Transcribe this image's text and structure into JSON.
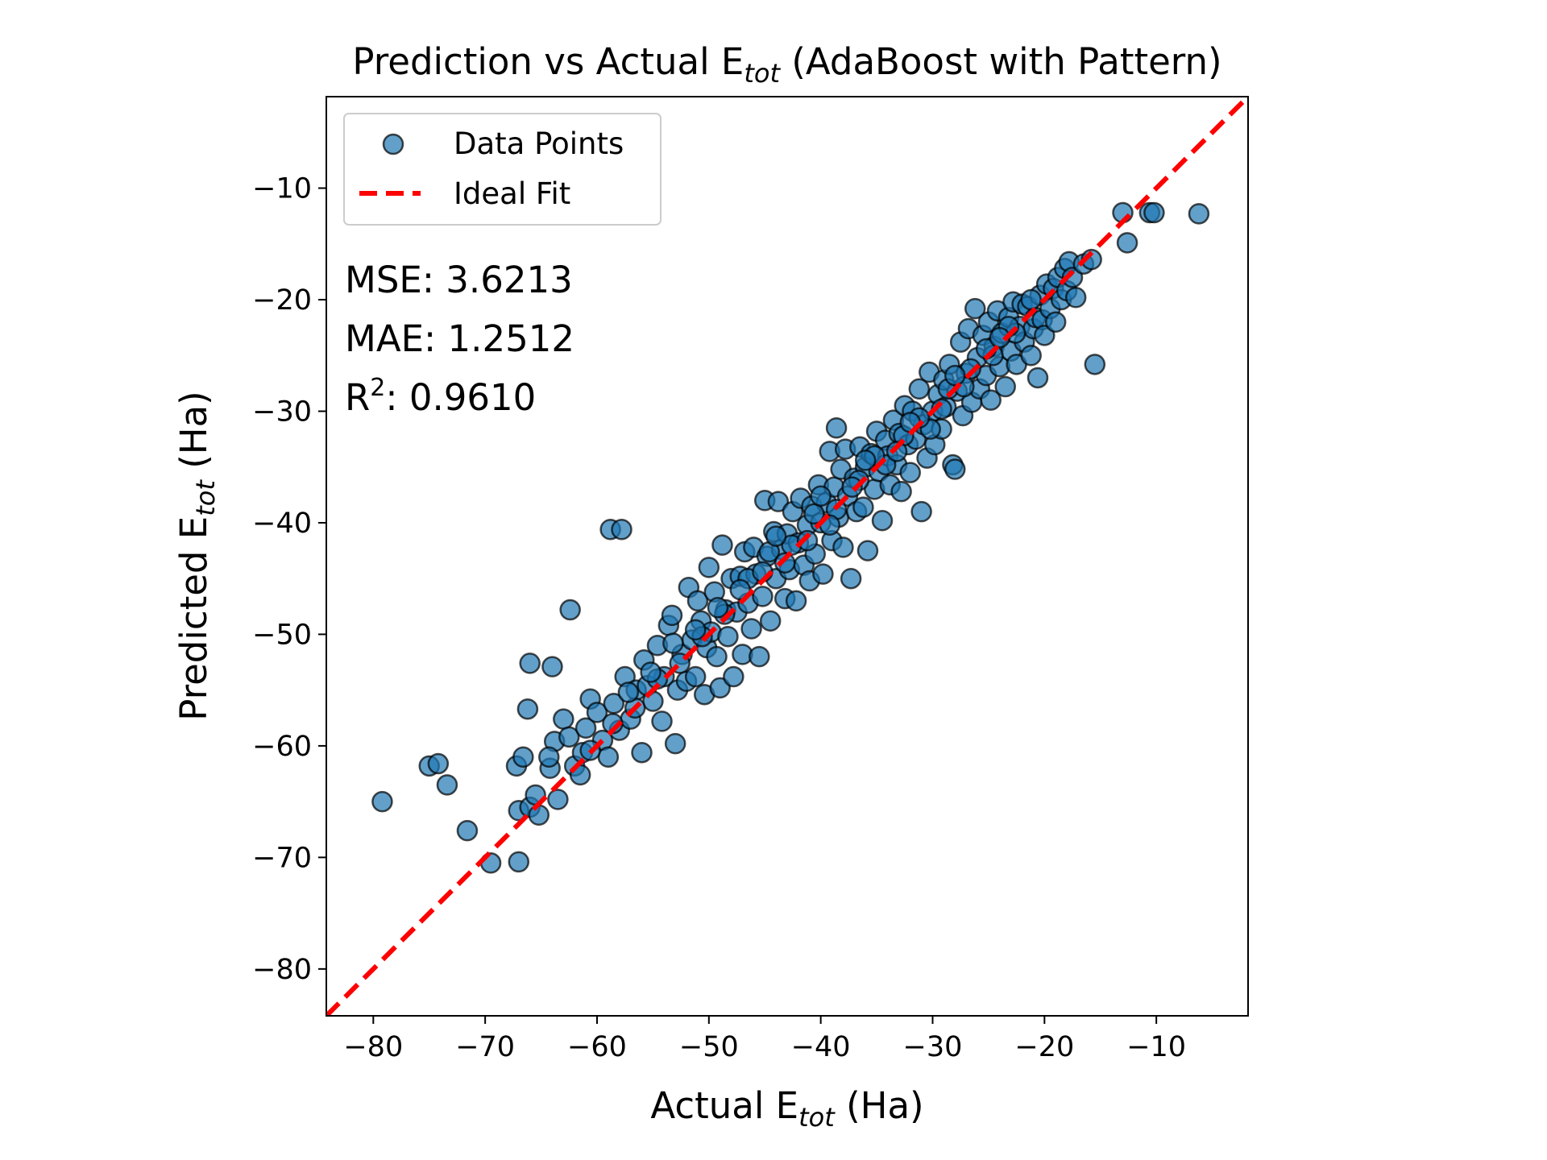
{
  "chart_data": {
    "type": "scatter",
    "title": {
      "main": "Prediction vs Actual E",
      "sub": "tot",
      "rest": " (AdaBoost with Pattern)"
    },
    "xlabel": {
      "main": "Actual E",
      "sub": "tot",
      "rest": " (Ha)"
    },
    "ylabel": {
      "main": "Predicted E",
      "sub": "tot",
      "rest": " (Ha)"
    },
    "xlim": [
      -84.2,
      -1.8
    ],
    "ylim": [
      -84.2,
      -1.8
    ],
    "xticks": [
      -80,
      -70,
      -60,
      -50,
      -40,
      -30,
      -20,
      -10
    ],
    "yticks": [
      -80,
      -70,
      -60,
      -50,
      -40,
      -30,
      -20,
      -10
    ],
    "xtick_labels": [
      "−80",
      "−70",
      "−60",
      "−50",
      "−40",
      "−30",
      "−20",
      "−10"
    ],
    "ytick_labels": [
      "−80",
      "−70",
      "−60",
      "−50",
      "−40",
      "−30",
      "−20",
      "−10"
    ],
    "legend": {
      "position": "upper-left",
      "entries": [
        {
          "label": "Data Points",
          "kind": "marker"
        },
        {
          "label": "Ideal Fit",
          "kind": "dashed-line"
        }
      ]
    },
    "annotations": {
      "mse": "MSE: 3.6213",
      "mae": "MAE: 1.2512",
      "r2_main": "R",
      "r2_sup": "2",
      "r2_rest": ": 0.9610"
    },
    "colors": {
      "points": "#1f77b4",
      "point_edge": "#000000",
      "ideal_line": "#ff0000"
    },
    "ideal_fit": {
      "x": [
        -84.2,
        -1.8
      ],
      "y": [
        -84.2,
        -1.8
      ]
    },
    "series": [
      {
        "name": "Data Points",
        "points": [
          [
            -79.2,
            -65.0
          ],
          [
            -75.0,
            -61.8
          ],
          [
            -74.2,
            -61.6
          ],
          [
            -73.4,
            -63.5
          ],
          [
            -71.6,
            -67.6
          ],
          [
            -69.5,
            -70.5
          ],
          [
            -67.0,
            -70.4
          ],
          [
            -67.2,
            -61.8
          ],
          [
            -66.6,
            -61.0
          ],
          [
            -67.0,
            -65.8
          ],
          [
            -66.0,
            -65.5
          ],
          [
            -65.5,
            -64.4
          ],
          [
            -65.2,
            -66.2
          ],
          [
            -66.2,
            -56.7
          ],
          [
            -66.0,
            -52.6
          ],
          [
            -64.0,
            -52.9
          ],
          [
            -62.4,
            -47.8
          ],
          [
            -58.8,
            -40.6
          ],
          [
            -57.8,
            -40.6
          ],
          [
            -64.2,
            -62.0
          ],
          [
            -63.8,
            -59.6
          ],
          [
            -64.3,
            -61.0
          ],
          [
            -63.5,
            -64.8
          ],
          [
            -63.0,
            -57.6
          ],
          [
            -62.5,
            -59.2
          ],
          [
            -62.0,
            -61.8
          ],
          [
            -61.5,
            -62.6
          ],
          [
            -61.0,
            -58.4
          ],
          [
            -61.3,
            -60.6
          ],
          [
            -60.6,
            -55.8
          ],
          [
            -60.0,
            -57.0
          ],
          [
            -59.5,
            -59.5
          ],
          [
            -59.0,
            -61.0
          ],
          [
            -58.5,
            -56.2
          ],
          [
            -58.0,
            -58.6
          ],
          [
            -57.5,
            -53.8
          ],
          [
            -57.0,
            -57.6
          ],
          [
            -56.5,
            -55.0
          ],
          [
            -56.0,
            -60.6
          ],
          [
            -55.8,
            -52.3
          ],
          [
            -55.5,
            -54.6
          ],
          [
            -55.0,
            -56.0
          ],
          [
            -54.6,
            -51.0
          ],
          [
            -54.2,
            -57.8
          ],
          [
            -54.0,
            -53.8
          ],
          [
            -53.6,
            -49.2
          ],
          [
            -53.3,
            -48.3
          ],
          [
            -53.0,
            -59.8
          ],
          [
            -52.8,
            -55.0
          ],
          [
            -52.4,
            -51.8
          ],
          [
            -52.0,
            -54.2
          ],
          [
            -51.8,
            -45.8
          ],
          [
            -51.5,
            -50.5
          ],
          [
            -51.2,
            -53.8
          ],
          [
            -51.0,
            -47.0
          ],
          [
            -50.7,
            -48.8
          ],
          [
            -50.4,
            -55.4
          ],
          [
            -50.2,
            -51.2
          ],
          [
            -50.0,
            -44.0
          ],
          [
            -49.8,
            -49.8
          ],
          [
            -49.5,
            -46.2
          ],
          [
            -49.3,
            -52.0
          ],
          [
            -49.0,
            -54.8
          ],
          [
            -48.8,
            -42.0
          ],
          [
            -48.5,
            -47.8
          ],
          [
            -48.3,
            -50.2
          ],
          [
            -48.0,
            -45.0
          ],
          [
            -47.8,
            -53.8
          ],
          [
            -47.5,
            -48.0
          ],
          [
            -47.2,
            -44.8
          ],
          [
            -47.0,
            -51.8
          ],
          [
            -46.8,
            -42.6
          ],
          [
            -46.5,
            -47.2
          ],
          [
            -46.2,
            -49.5
          ],
          [
            -46.0,
            -42.2
          ],
          [
            -45.8,
            -44.6
          ],
          [
            -45.5,
            -52.0
          ],
          [
            -45.2,
            -46.6
          ],
          [
            -45.0,
            -38.0
          ],
          [
            -44.8,
            -43.0
          ],
          [
            -44.5,
            -48.8
          ],
          [
            -44.2,
            -40.8
          ],
          [
            -44.0,
            -45.0
          ],
          [
            -43.8,
            -38.1
          ],
          [
            -43.5,
            -42.4
          ],
          [
            -43.2,
            -46.8
          ],
          [
            -43.0,
            -41.0
          ],
          [
            -42.8,
            -44.2
          ],
          [
            -42.5,
            -39.0
          ],
          [
            -42.2,
            -47.0
          ],
          [
            -42.0,
            -41.8
          ],
          [
            -41.8,
            -37.8
          ],
          [
            -41.5,
            -43.8
          ],
          [
            -41.2,
            -40.2
          ],
          [
            -41.0,
            -45.2
          ],
          [
            -40.8,
            -38.5
          ],
          [
            -40.5,
            -42.8
          ],
          [
            -40.2,
            -36.6
          ],
          [
            -40.0,
            -40.0
          ],
          [
            -39.8,
            -44.6
          ],
          [
            -39.5,
            -38.2
          ],
          [
            -39.2,
            -33.6
          ],
          [
            -39.0,
            -41.6
          ],
          [
            -38.8,
            -36.8
          ],
          [
            -38.6,
            -31.5
          ],
          [
            -38.4,
            -39.5
          ],
          [
            -38.2,
            -35.2
          ],
          [
            -38.0,
            -42.2
          ],
          [
            -37.8,
            -33.4
          ],
          [
            -37.6,
            -37.6
          ],
          [
            -37.3,
            -45.0
          ],
          [
            -37.0,
            -36.0
          ],
          [
            -36.8,
            -39.0
          ],
          [
            -36.5,
            -33.2
          ],
          [
            -36.2,
            -38.6
          ],
          [
            -36.0,
            -35.0
          ],
          [
            -35.8,
            -42.5
          ],
          [
            -35.5,
            -33.8
          ],
          [
            -35.2,
            -37.0
          ],
          [
            -35.0,
            -31.8
          ],
          [
            -34.8,
            -35.4
          ],
          [
            -34.5,
            -39.8
          ],
          [
            -34.2,
            -32.6
          ],
          [
            -34.0,
            -34.0
          ],
          [
            -33.8,
            -36.6
          ],
          [
            -33.5,
            -30.8
          ],
          [
            -33.2,
            -34.8
          ],
          [
            -33.0,
            -32.0
          ],
          [
            -32.8,
            -37.2
          ],
          [
            -32.5,
            -29.5
          ],
          [
            -32.2,
            -33.0
          ],
          [
            -32.0,
            -35.5
          ],
          [
            -31.8,
            -30.0
          ],
          [
            -31.5,
            -32.5
          ],
          [
            -31.2,
            -28.0
          ],
          [
            -31.0,
            -39.0
          ],
          [
            -30.8,
            -31.2
          ],
          [
            -30.5,
            -34.2
          ],
          [
            -30.3,
            -26.5
          ],
          [
            -30.0,
            -30.0
          ],
          [
            -29.8,
            -33.0
          ],
          [
            -29.5,
            -28.5
          ],
          [
            -29.2,
            -31.6
          ],
          [
            -29.0,
            -27.2
          ],
          [
            -28.8,
            -29.6
          ],
          [
            -28.5,
            -25.8
          ],
          [
            -28.2,
            -34.8
          ],
          [
            -28.0,
            -35.2
          ],
          [
            -27.8,
            -28.2
          ],
          [
            -27.5,
            -23.8
          ],
          [
            -27.3,
            -30.4
          ],
          [
            -27.0,
            -26.6
          ],
          [
            -26.8,
            -22.6
          ],
          [
            -26.5,
            -29.2
          ],
          [
            -26.2,
            -20.8
          ],
          [
            -26.0,
            -25.2
          ],
          [
            -25.8,
            -28.0
          ],
          [
            -25.5,
            -23.2
          ],
          [
            -25.2,
            -26.8
          ],
          [
            -25.0,
            -22.0
          ],
          [
            -24.8,
            -29.0
          ],
          [
            -24.5,
            -24.2
          ],
          [
            -24.2,
            -21.0
          ],
          [
            -24.0,
            -26.0
          ],
          [
            -23.8,
            -23.0
          ],
          [
            -23.5,
            -27.8
          ],
          [
            -23.2,
            -21.6
          ],
          [
            -23.0,
            -24.6
          ],
          [
            -22.8,
            -20.2
          ],
          [
            -22.5,
            -25.8
          ],
          [
            -22.2,
            -22.4
          ],
          [
            -22.0,
            -20.4
          ],
          [
            -21.8,
            -23.8
          ],
          [
            -21.5,
            -20.6
          ],
          [
            -21.2,
            -25.0
          ],
          [
            -21.0,
            -22.6
          ],
          [
            -20.8,
            -21.6
          ],
          [
            -20.6,
            -27.0
          ],
          [
            -20.4,
            -19.6
          ],
          [
            -20.2,
            -21.8
          ],
          [
            -20.0,
            -23.2
          ],
          [
            -19.8,
            -18.6
          ],
          [
            -19.5,
            -20.8
          ],
          [
            -19.2,
            -19.0
          ],
          [
            -19.0,
            -22.0
          ],
          [
            -18.8,
            -18.0
          ],
          [
            -18.5,
            -20.0
          ],
          [
            -18.2,
            -17.2
          ],
          [
            -18.0,
            -19.2
          ],
          [
            -17.8,
            -16.6
          ],
          [
            -17.5,
            -18.0
          ],
          [
            -17.2,
            -19.8
          ],
          [
            -16.5,
            -16.8
          ],
          [
            -15.8,
            -16.4
          ],
          [
            -15.5,
            -25.8
          ],
          [
            -12.6,
            -14.9
          ],
          [
            -13.0,
            -12.2
          ],
          [
            -10.6,
            -12.2
          ],
          [
            -10.2,
            -12.2
          ],
          [
            -6.2,
            -12.3
          ],
          [
            -46.5,
            -45.0
          ],
          [
            -44.6,
            -42.6
          ],
          [
            -40.6,
            -39.2
          ],
          [
            -36.6,
            -36.2
          ],
          [
            -34.2,
            -34.8
          ],
          [
            -30.2,
            -31.6
          ],
          [
            -28.6,
            -28.0
          ],
          [
            -26.6,
            -26.2
          ],
          [
            -24.6,
            -25.0
          ],
          [
            -22.6,
            -23.0
          ],
          [
            -48.6,
            -48.2
          ],
          [
            -50.6,
            -50.2
          ],
          [
            -52.6,
            -52.6
          ],
          [
            -54.6,
            -54.0
          ],
          [
            -56.6,
            -56.6
          ],
          [
            -58.6,
            -58.0
          ],
          [
            -60.6,
            -60.4
          ],
          [
            -42.6,
            -42.0
          ],
          [
            -38.6,
            -38.8
          ],
          [
            -32.6,
            -32.2
          ],
          [
            -47.2,
            -46.0
          ],
          [
            -43.2,
            -43.6
          ],
          [
            -39.2,
            -40.2
          ],
          [
            -35.2,
            -34.0
          ],
          [
            -31.2,
            -30.6
          ],
          [
            -27.2,
            -27.8
          ],
          [
            -23.2,
            -22.4
          ],
          [
            -21.2,
            -20.0
          ],
          [
            -53.2,
            -50.8
          ],
          [
            -49.2,
            -47.6
          ],
          [
            -45.2,
            -44.4
          ],
          [
            -41.2,
            -41.6
          ],
          [
            -37.2,
            -36.8
          ],
          [
            -33.2,
            -33.6
          ],
          [
            -29.2,
            -29.8
          ],
          [
            -25.2,
            -24.4
          ],
          [
            -55.2,
            -53.4
          ],
          [
            -57.2,
            -55.2
          ],
          [
            -51.2,
            -49.6
          ],
          [
            -44.0,
            -41.2
          ],
          [
            -40.0,
            -37.6
          ],
          [
            -36.0,
            -34.4
          ],
          [
            -32.0,
            -31.0
          ],
          [
            -28.0,
            -26.8
          ],
          [
            -24.0,
            -23.4
          ]
        ]
      }
    ]
  }
}
